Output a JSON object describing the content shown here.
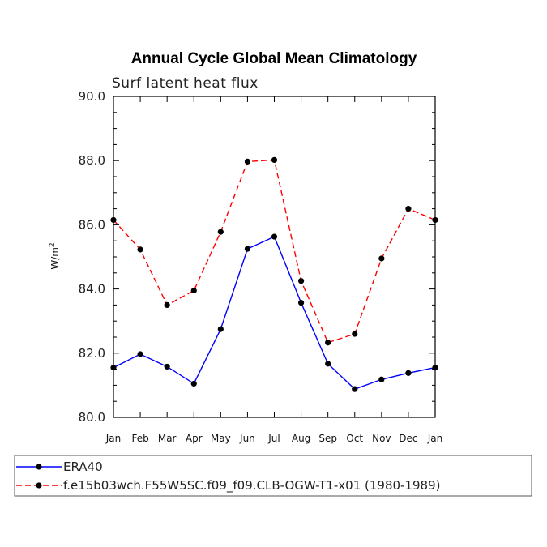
{
  "chart_data": {
    "type": "line",
    "title": "Annual Cycle Global Mean Climatology",
    "subtitle": "Surf latent heat flux",
    "ylabel": "W/m",
    "ylabel_superscript": "2",
    "ylim": [
      80.0,
      90.0
    ],
    "yticks": [
      "80.0",
      "82.0",
      "84.0",
      "86.0",
      "88.0",
      "90.0"
    ],
    "categories": [
      "Jan",
      "Feb",
      "Mar",
      "Apr",
      "May",
      "Jun",
      "Jul",
      "Aug",
      "Sep",
      "Oct",
      "Nov",
      "Dec",
      "Jan"
    ],
    "series": [
      {
        "name": "ERA40",
        "color": "#0000ff",
        "dash": "solid",
        "values": [
          81.55,
          81.97,
          81.58,
          81.05,
          82.75,
          85.25,
          85.63,
          83.57,
          81.67,
          80.88,
          81.18,
          81.38,
          81.55
        ]
      },
      {
        "name": "f.e15b03wch.F55W5SC.f09_f09.CLB-OGW-T1-x01 (1980-1989)",
        "color": "#ff0000",
        "dash": "dashed",
        "values": [
          86.15,
          85.23,
          83.5,
          83.95,
          85.78,
          87.97,
          88.02,
          84.25,
          82.33,
          82.6,
          84.95,
          86.5,
          86.15
        ]
      }
    ],
    "marker_color": "#000000"
  }
}
